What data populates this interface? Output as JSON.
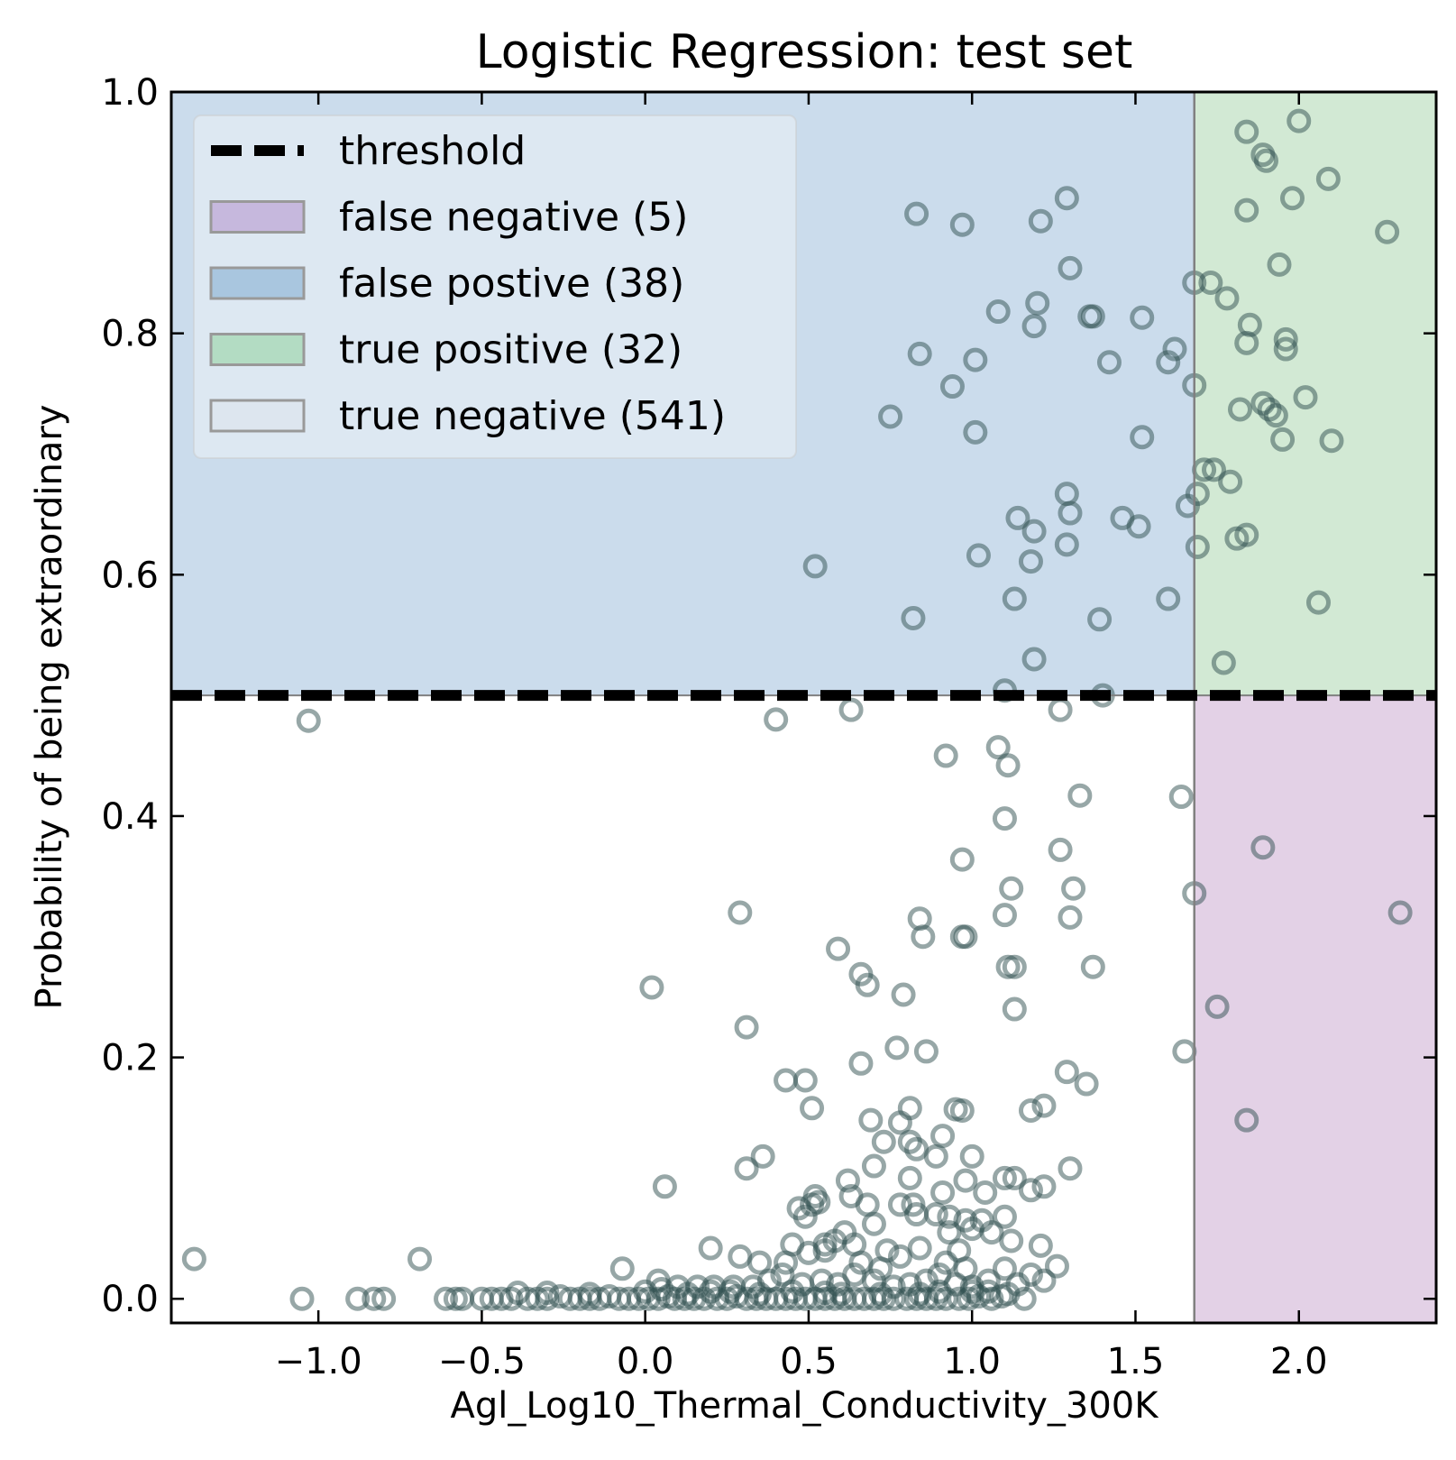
{
  "chart_data": {
    "type": "scatter",
    "title": "Logistic Regression: test set",
    "xlabel": "Agl_Log10_Thermal_Conductivity_300K",
    "ylabel": "Probability of being extraordinary",
    "xlim": [
      -1.45,
      2.42
    ],
    "ylim": [
      -0.02,
      1.0
    ],
    "x_ticks": [
      -1.0,
      -0.5,
      0.0,
      0.5,
      1.0,
      1.5,
      2.0
    ],
    "x_tick_labels": [
      "−1.0",
      "−0.5",
      "0.0",
      "0.5",
      "1.0",
      "1.5",
      "2.0"
    ],
    "y_ticks": [
      0.0,
      0.2,
      0.4,
      0.6,
      0.8,
      1.0
    ],
    "y_tick_labels": [
      "0.0",
      "0.2",
      "0.4",
      "0.6",
      "0.8",
      "1.0"
    ],
    "threshold": {
      "probability": 0.5,
      "x_cutoff": 1.68
    },
    "legend": {
      "placement": "upper-left",
      "entries": [
        {
          "label": "threshold",
          "kind": "dashed-line",
          "color": "#000000"
        },
        {
          "label": "false negative (5)",
          "kind": "patch",
          "color": "#c6b8dd"
        },
        {
          "label": "false postive (38)",
          "kind": "patch",
          "color": "#a9c6df"
        },
        {
          "label": "true positive (32)",
          "kind": "patch",
          "color": "#b3dcc3"
        },
        {
          "label": "true negative (541)",
          "kind": "patch",
          "color": "#dde6ef"
        }
      ]
    },
    "regions": [
      {
        "name": "false positive",
        "x": [
          -1.45,
          1.68
        ],
        "y": [
          0.5,
          1.0
        ],
        "color": "#cbdcec"
      },
      {
        "name": "true positive",
        "x": [
          1.68,
          2.42
        ],
        "y": [
          0.5,
          1.0
        ],
        "color": "#d2e9d4"
      },
      {
        "name": "false negative",
        "x": [
          1.68,
          2.42
        ],
        "y": [
          -0.02,
          0.5
        ],
        "color": "#e3d1e6"
      }
    ],
    "marker_color": "#2f4f4f",
    "points": [
      [
        1.84,
        0.967
      ],
      [
        2.0,
        0.976
      ],
      [
        1.89,
        0.948
      ],
      [
        1.9,
        0.943
      ],
      [
        2.09,
        0.928
      ],
      [
        1.98,
        0.912
      ],
      [
        1.84,
        0.902
      ],
      [
        2.27,
        0.884
      ],
      [
        1.94,
        0.857
      ],
      [
        1.68,
        0.842
      ],
      [
        1.73,
        0.842
      ],
      [
        1.78,
        0.829
      ],
      [
        1.85,
        0.807
      ],
      [
        1.96,
        0.795
      ],
      [
        1.96,
        0.787
      ],
      [
        1.84,
        0.792
      ],
      [
        1.82,
        0.737
      ],
      [
        1.89,
        0.742
      ],
      [
        1.91,
        0.737
      ],
      [
        1.93,
        0.732
      ],
      [
        2.02,
        0.747
      ],
      [
        1.95,
        0.712
      ],
      [
        2.1,
        0.711
      ],
      [
        1.68,
        0.757
      ],
      [
        1.71,
        0.687
      ],
      [
        1.74,
        0.687
      ],
      [
        1.79,
        0.677
      ],
      [
        1.66,
        0.657
      ],
      [
        1.69,
        0.667
      ],
      [
        1.84,
        0.633
      ],
      [
        1.81,
        0.63
      ],
      [
        1.69,
        0.623
      ],
      [
        2.06,
        0.577
      ],
      [
        1.77,
        0.527
      ],
      [
        0.83,
        0.899
      ],
      [
        0.97,
        0.89
      ],
      [
        1.21,
        0.893
      ],
      [
        1.29,
        0.912
      ],
      [
        1.3,
        0.854
      ],
      [
        1.08,
        0.818
      ],
      [
        1.2,
        0.825
      ],
      [
        1.19,
        0.806
      ],
      [
        1.36,
        0.814
      ],
      [
        1.37,
        0.814
      ],
      [
        1.52,
        0.813
      ],
      [
        0.84,
        0.783
      ],
      [
        1.01,
        0.778
      ],
      [
        1.42,
        0.776
      ],
      [
        1.62,
        0.787
      ],
      [
        1.6,
        0.776
      ],
      [
        0.94,
        0.756
      ],
      [
        0.75,
        0.731
      ],
      [
        1.01,
        0.718
      ],
      [
        1.52,
        0.714
      ],
      [
        1.29,
        0.667
      ],
      [
        1.3,
        0.651
      ],
      [
        1.14,
        0.647
      ],
      [
        1.46,
        0.647
      ],
      [
        1.51,
        0.64
      ],
      [
        1.19,
        0.636
      ],
      [
        1.29,
        0.625
      ],
      [
        1.02,
        0.616
      ],
      [
        1.18,
        0.611
      ],
      [
        0.52,
        0.607
      ],
      [
        1.13,
        0.58
      ],
      [
        1.6,
        0.58
      ],
      [
        0.82,
        0.564
      ],
      [
        1.39,
        0.563
      ],
      [
        1.19,
        0.53
      ],
      [
        1.1,
        0.504
      ],
      [
        1.4,
        0.5
      ],
      [
        -1.03,
        0.479
      ],
      [
        0.4,
        0.48
      ],
      [
        0.63,
        0.488
      ],
      [
        1.27,
        0.488
      ],
      [
        0.92,
        0.45
      ],
      [
        1.08,
        0.457
      ],
      [
        1.11,
        0.442
      ],
      [
        1.33,
        0.417
      ],
      [
        1.64,
        0.416
      ],
      [
        1.89,
        0.374
      ],
      [
        1.1,
        0.398
      ],
      [
        0.97,
        0.364
      ],
      [
        1.27,
        0.372
      ],
      [
        1.31,
        0.34
      ],
      [
        1.12,
        0.34
      ],
      [
        1.68,
        0.336
      ],
      [
        2.31,
        0.32
      ],
      [
        0.29,
        0.32
      ],
      [
        0.84,
        0.315
      ],
      [
        1.3,
        0.316
      ],
      [
        1.1,
        0.318
      ],
      [
        0.85,
        0.3
      ],
      [
        0.97,
        0.3
      ],
      [
        0.98,
        0.3
      ],
      [
        1.11,
        0.275
      ],
      [
        1.37,
        0.275
      ],
      [
        1.13,
        0.275
      ],
      [
        0.59,
        0.29
      ],
      [
        0.66,
        0.269
      ],
      [
        0.68,
        0.26
      ],
      [
        0.79,
        0.252
      ],
      [
        0.02,
        0.258
      ],
      [
        1.13,
        0.24
      ],
      [
        1.75,
        0.242
      ],
      [
        0.31,
        0.225
      ],
      [
        0.77,
        0.208
      ],
      [
        0.86,
        0.205
      ],
      [
        1.65,
        0.205
      ],
      [
        0.66,
        0.195
      ],
      [
        1.29,
        0.188
      ],
      [
        0.43,
        0.181
      ],
      [
        0.49,
        0.181
      ],
      [
        1.35,
        0.178
      ],
      [
        1.22,
        0.16
      ],
      [
        1.18,
        0.156
      ],
      [
        0.51,
        0.158
      ],
      [
        0.81,
        0.158
      ],
      [
        0.95,
        0.157
      ],
      [
        0.97,
        0.156
      ],
      [
        1.84,
        0.148
      ],
      [
        0.69,
        0.148
      ],
      [
        0.78,
        0.146
      ],
      [
        0.73,
        0.13
      ],
      [
        0.81,
        0.13
      ],
      [
        0.83,
        0.124
      ],
      [
        0.91,
        0.135
      ],
      [
        0.89,
        0.118
      ],
      [
        1.0,
        0.118
      ],
      [
        0.36,
        0.118
      ],
      [
        0.31,
        0.108
      ],
      [
        0.7,
        0.11
      ],
      [
        1.3,
        0.108
      ],
      [
        1.1,
        0.1
      ],
      [
        1.13,
        0.1
      ],
      [
        0.98,
        0.098
      ],
      [
        0.81,
        0.1
      ],
      [
        0.62,
        0.098
      ],
      [
        0.06,
        0.093
      ],
      [
        1.18,
        0.09
      ],
      [
        1.22,
        0.093
      ],
      [
        0.91,
        0.088
      ],
      [
        1.04,
        0.088
      ],
      [
        0.52,
        0.085
      ],
      [
        0.63,
        0.085
      ],
      [
        0.68,
        0.078
      ],
      [
        0.78,
        0.078
      ],
      [
        0.82,
        0.078
      ],
      [
        0.47,
        0.075
      ],
      [
        0.51,
        0.078
      ],
      [
        0.53,
        0.08
      ],
      [
        0.89,
        0.07
      ],
      [
        0.93,
        0.068
      ],
      [
        0.98,
        0.065
      ],
      [
        1.03,
        0.065
      ],
      [
        1.1,
        0.068
      ],
      [
        0.49,
        0.068
      ],
      [
        0.7,
        0.062
      ],
      [
        0.83,
        0.07
      ],
      [
        1.06,
        0.055
      ],
      [
        1.0,
        0.058
      ],
      [
        0.61,
        0.055
      ],
      [
        0.58,
        0.048
      ],
      [
        0.93,
        0.055
      ],
      [
        1.12,
        0.048
      ],
      [
        1.21,
        0.044
      ],
      [
        0.45,
        0.045
      ],
      [
        0.55,
        0.045
      ],
      [
        0.64,
        0.045
      ],
      [
        0.74,
        0.04
      ],
      [
        0.78,
        0.035
      ],
      [
        0.84,
        0.042
      ],
      [
        0.96,
        0.04
      ],
      [
        0.2,
        0.042
      ],
      [
        0.29,
        0.035
      ],
      [
        -1.38,
        0.033
      ],
      [
        -0.69,
        0.033
      ],
      [
        0.35,
        0.03
      ],
      [
        0.43,
        0.03
      ],
      [
        0.5,
        0.038
      ],
      [
        0.55,
        0.04
      ],
      [
        0.66,
        0.03
      ],
      [
        0.72,
        0.025
      ],
      [
        0.92,
        0.03
      ],
      [
        0.98,
        0.025
      ],
      [
        1.1,
        0.025
      ],
      [
        1.26,
        0.027
      ],
      [
        -0.07,
        0.025
      ],
      [
        0.04,
        0.015
      ],
      [
        0.1,
        0.01
      ],
      [
        0.16,
        0.01
      ],
      [
        0.21,
        0.01
      ],
      [
        0.27,
        0.01
      ],
      [
        0.33,
        0.01
      ],
      [
        0.38,
        0.015
      ],
      [
        0.42,
        0.02
      ],
      [
        0.48,
        0.012
      ],
      [
        0.54,
        0.015
      ],
      [
        0.59,
        0.012
      ],
      [
        0.64,
        0.02
      ],
      [
        0.7,
        0.015
      ],
      [
        0.76,
        0.01
      ],
      [
        0.81,
        0.012
      ],
      [
        0.86,
        0.015
      ],
      [
        0.9,
        0.02
      ],
      [
        0.95,
        0.012
      ],
      [
        1.0,
        0.01
      ],
      [
        1.05,
        0.015
      ],
      [
        1.14,
        0.012
      ],
      [
        1.18,
        0.02
      ],
      [
        1.22,
        0.015
      ],
      [
        -1.05,
        0.0
      ],
      [
        -0.88,
        0.0
      ],
      [
        -0.83,
        0.0
      ],
      [
        -0.8,
        0.0
      ],
      [
        -0.61,
        0.0
      ],
      [
        -0.58,
        0.0
      ],
      [
        -0.56,
        0.0
      ],
      [
        -0.5,
        0.0
      ],
      [
        -0.47,
        0.0
      ],
      [
        -0.44,
        0.0
      ],
      [
        -0.41,
        0.0
      ],
      [
        -0.39,
        0.005
      ],
      [
        -0.36,
        0.0
      ],
      [
        -0.33,
        0.0
      ],
      [
        -0.3,
        0.0
      ],
      [
        -0.26,
        0.002
      ],
      [
        -0.23,
        0.0
      ],
      [
        -0.2,
        0.0
      ],
      [
        -0.17,
        0.0
      ],
      [
        -0.14,
        0.0
      ],
      [
        -0.11,
        0.002
      ],
      [
        -0.08,
        0.0
      ],
      [
        -0.05,
        0.0
      ],
      [
        -0.02,
        0.0
      ],
      [
        0.01,
        0.0
      ],
      [
        0.04,
        0.0
      ],
      [
        0.07,
        0.002
      ],
      [
        0.09,
        0.0
      ],
      [
        0.12,
        0.0
      ],
      [
        0.15,
        0.0
      ],
      [
        0.18,
        0.0
      ],
      [
        0.22,
        0.0
      ],
      [
        0.25,
        0.0
      ],
      [
        0.28,
        0.002
      ],
      [
        0.31,
        0.0
      ],
      [
        0.34,
        0.0
      ],
      [
        0.37,
        0.0
      ],
      [
        0.4,
        0.0
      ],
      [
        0.43,
        0.0
      ],
      [
        0.46,
        0.0
      ],
      [
        0.49,
        0.0
      ],
      [
        0.52,
        0.0
      ],
      [
        0.55,
        0.0
      ],
      [
        0.58,
        0.0
      ],
      [
        0.61,
        0.0
      ],
      [
        0.64,
        0.0
      ],
      [
        0.67,
        0.0
      ],
      [
        0.7,
        0.0
      ],
      [
        0.73,
        0.0
      ],
      [
        0.76,
        0.0
      ],
      [
        0.8,
        0.0
      ],
      [
        0.83,
        0.0
      ],
      [
        0.86,
        0.0
      ],
      [
        0.89,
        0.0
      ],
      [
        0.92,
        0.0
      ],
      [
        0.96,
        0.0
      ],
      [
        0.99,
        0.0
      ],
      [
        1.02,
        0.002
      ],
      [
        1.06,
        0.0
      ],
      [
        1.09,
        0.002
      ],
      [
        1.11,
        0.004
      ],
      [
        1.16,
        0.0
      ],
      [
        -0.3,
        0.005
      ],
      [
        0.0,
        0.006
      ],
      [
        0.2,
        0.006
      ],
      [
        0.26,
        0.006
      ],
      [
        0.45,
        0.006
      ],
      [
        0.6,
        0.004
      ],
      [
        0.72,
        0.004
      ],
      [
        0.84,
        0.004
      ],
      [
        1.05,
        0.006
      ],
      [
        0.13,
        0.004
      ],
      [
        -0.17,
        0.004
      ],
      [
        0.05,
        0.008
      ],
      [
        0.35,
        0.004
      ],
      [
        0.55,
        0.005
      ],
      [
        0.9,
        0.006
      ],
      [
        1.0,
        0.006
      ]
    ]
  }
}
